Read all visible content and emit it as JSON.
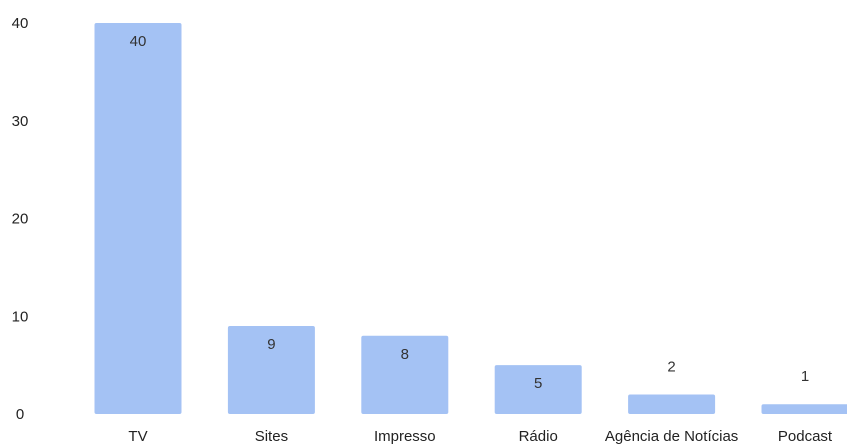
{
  "chart_data": {
    "type": "bar",
    "categories": [
      "TV",
      "Sites",
      "Impresso",
      "Rádio",
      "Agência de Notícias",
      "Podcast"
    ],
    "values": [
      40,
      9,
      8,
      5,
      2,
      1
    ],
    "data_labels": [
      "40",
      "9",
      "8",
      "5",
      "2",
      "1"
    ],
    "title": "",
    "xlabel": "",
    "ylabel": "",
    "ylim": [
      0,
      40
    ],
    "yticks": [
      0,
      10,
      20,
      30,
      40
    ],
    "ytick_labels": [
      "0",
      "10",
      "20",
      "30",
      "40"
    ],
    "grid": false,
    "legend": "none",
    "bar_color": "#a4c2f4",
    "text_color": "#222222"
  }
}
